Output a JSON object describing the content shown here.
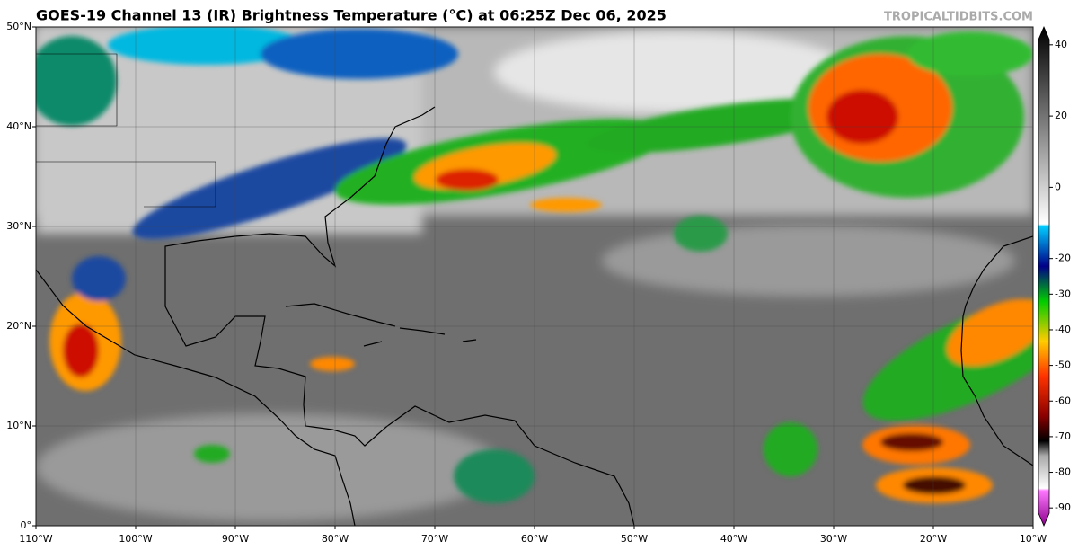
{
  "map": {
    "title": "GOES-19 Channel 13 (IR) Brightness Temperature (°C) at 06:25Z Dec 06, 2025",
    "source": "TROPICALTIDBITS.COM",
    "xlim": [
      -110,
      -10
    ],
    "ylim": [
      0,
      50
    ],
    "xticks": [
      {
        "value": -110,
        "label": "110°W"
      },
      {
        "value": -100,
        "label": "100°W"
      },
      {
        "value": -90,
        "label": "90°W"
      },
      {
        "value": -80,
        "label": "80°W"
      },
      {
        "value": -70,
        "label": "70°W"
      },
      {
        "value": -60,
        "label": "60°W"
      },
      {
        "value": -50,
        "label": "50°W"
      },
      {
        "value": -40,
        "label": "40°W"
      },
      {
        "value": -30,
        "label": "30°W"
      },
      {
        "value": -20,
        "label": "20°W"
      },
      {
        "value": -10,
        "label": "10°W"
      }
    ],
    "yticks": [
      {
        "value": 0,
        "label": "0°"
      },
      {
        "value": 10,
        "label": "10°N"
      },
      {
        "value": 20,
        "label": "20°N"
      },
      {
        "value": 30,
        "label": "30°N"
      },
      {
        "value": 40,
        "label": "40°N"
      },
      {
        "value": 50,
        "label": "50°N"
      }
    ],
    "colorbar": {
      "lim": [
        -95,
        45
      ],
      "ticks": [
        40,
        20,
        0,
        -20,
        -30,
        -40,
        -50,
        -60,
        -70,
        -80,
        -90
      ]
    }
  }
}
